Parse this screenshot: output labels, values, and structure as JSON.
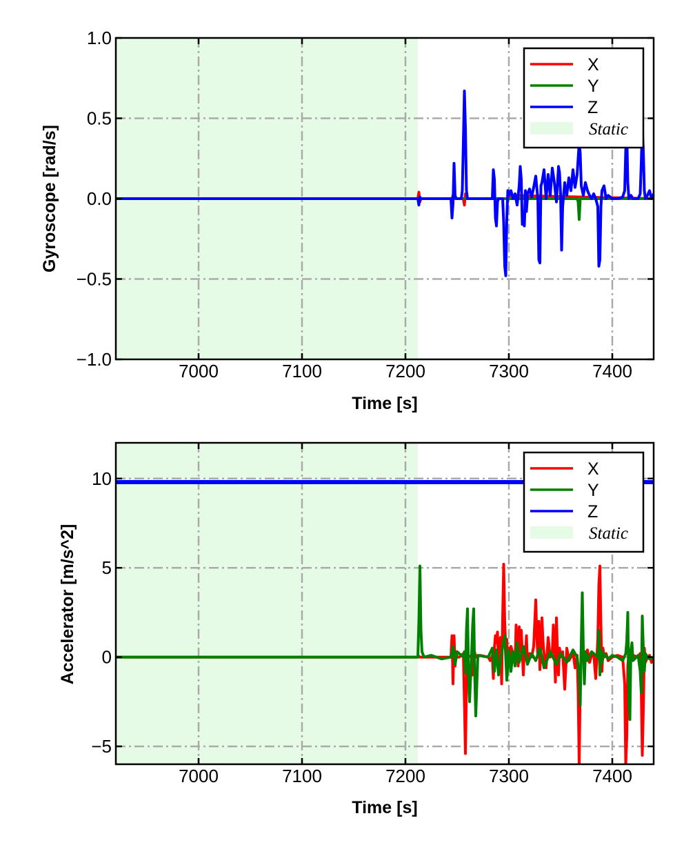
{
  "colors": {
    "x": "#ff0000",
    "y": "#008000",
    "z": "#0000ff",
    "static_fill": "#e6fbe6",
    "grid": "#aaaaaa"
  },
  "chart_data": [
    {
      "type": "line",
      "xlabel": "Time [s]",
      "ylabel": "Gyroscope [rad/s]",
      "xlim": [
        6920,
        7440
      ],
      "ylim": [
        -1.0,
        1.0
      ],
      "xticks": [
        7000,
        7100,
        7200,
        7300,
        7400
      ],
      "yticks": [
        -1.0,
        -0.5,
        0.0,
        0.5,
        1.0
      ],
      "ytick_labels": [
        "−1.0",
        "−0.5",
        "0.0",
        "0.5",
        "1.0"
      ],
      "grid": true,
      "legend_position": "top-right",
      "static_region": [
        6920,
        7212
      ],
      "legend": [
        "X",
        "Y",
        "Z",
        "Static"
      ],
      "series": [
        {
          "name": "X",
          "x": [
            6920,
            7212,
            7213,
            7214,
            7215,
            7245,
            7246,
            7247,
            7256,
            7257,
            7258,
            7259,
            7260,
            7300,
            7301,
            7440
          ],
          "y": [
            0,
            0,
            0.04,
            -0.02,
            0,
            0,
            0.02,
            0,
            0,
            -0.04,
            0.03,
            0,
            0,
            0,
            0.02,
            0
          ]
        },
        {
          "name": "Y",
          "x": [
            6920,
            7212,
            7310,
            7315,
            7316,
            7317,
            7318,
            7366,
            7367,
            7368,
            7369,
            7370,
            7440
          ],
          "y": [
            0,
            0,
            0,
            0,
            0.04,
            -0.06,
            0,
            0,
            -0.02,
            -0.13,
            0,
            0,
            0
          ]
        },
        {
          "name": "Z",
          "x": [
            6920,
            7212,
            7213,
            7214,
            7215,
            7244,
            7245,
            7246,
            7247,
            7248,
            7249,
            7254,
            7255,
            7256,
            7257,
            7258,
            7259,
            7260,
            7284,
            7285,
            7286,
            7287,
            7288,
            7289,
            7290,
            7294,
            7295,
            7296,
            7297,
            7298,
            7299,
            7300,
            7302,
            7304,
            7306,
            7308,
            7310,
            7311,
            7312,
            7313,
            7314,
            7315,
            7316,
            7317,
            7318,
            7320,
            7322,
            7324,
            7326,
            7328,
            7329,
            7330,
            7331,
            7332,
            7334,
            7336,
            7338,
            7340,
            7342,
            7344,
            7346,
            7348,
            7349,
            7350,
            7351,
            7352,
            7354,
            7356,
            7358,
            7360,
            7362,
            7364,
            7366,
            7368,
            7369,
            7370,
            7372,
            7374,
            7376,
            7378,
            7380,
            7382,
            7384,
            7386,
            7387,
            7388,
            7389,
            7390,
            7392,
            7394,
            7396,
            7400,
            7405,
            7410,
            7412,
            7413,
            7414,
            7415,
            7416,
            7418,
            7420,
            7425,
            7427,
            7428,
            7429,
            7430,
            7431,
            7432,
            7434,
            7436,
            7438,
            7440
          ],
          "y": [
            0,
            0,
            -0.04,
            0.01,
            0,
            0,
            -0.12,
            -0.03,
            0.22,
            0.02,
            0,
            0,
            0.05,
            0.35,
            0.67,
            0.44,
            0.05,
            0,
            0,
            0.18,
            0.12,
            -0.12,
            -0.17,
            -0.02,
            0,
            0,
            -0.15,
            -0.42,
            -0.48,
            -0.12,
            0.05,
            0.02,
            0.05,
            0.0,
            0.03,
            -0.04,
            0.08,
            0.2,
            0.12,
            -0.16,
            -0.09,
            -0.17,
            0.05,
            -0.08,
            0.03,
            0.06,
            0.01,
            0.07,
            0.14,
            0.0,
            -0.38,
            -0.4,
            0.08,
            0.1,
            0.18,
            0.0,
            0.15,
            0.02,
            0.19,
            0.1,
            -0.02,
            0.2,
            0.16,
            0.03,
            -0.32,
            -0.05,
            0.1,
            0.02,
            0.13,
            0.05,
            0.18,
            0.07,
            0.15,
            0.35,
            0.28,
            0.08,
            0.02,
            0.1,
            0.05,
            0.02,
            0.0,
            0.03,
            0.0,
            -0.05,
            -0.42,
            -0.38,
            -0.05,
            0.05,
            0.08,
            0.0,
            0.02,
            0.0,
            0.0,
            0.01,
            0.05,
            0.3,
            0.42,
            0.1,
            0.0,
            0.02,
            0.0,
            0.0,
            0.03,
            0.22,
            0.45,
            0.3,
            0.05,
            0.0,
            0.02,
            0.05,
            0.0,
            0.03
          ]
        }
      ]
    },
    {
      "type": "line",
      "xlabel": "Time [s]",
      "ylabel": "Accelerator [m/s^2]",
      "xlim": [
        6920,
        7440
      ],
      "ylim": [
        -6,
        12
      ],
      "xticks": [
        7000,
        7100,
        7200,
        7300,
        7400
      ],
      "yticks": [
        -5,
        0,
        5,
        10
      ],
      "ytick_labels": [
        "−5",
        "0",
        "5",
        "10"
      ],
      "grid": true,
      "legend_position": "top-right",
      "static_region": [
        6920,
        7212
      ],
      "legend": [
        "X",
        "Y",
        "Z",
        "Static"
      ],
      "series": [
        {
          "name": "X",
          "x": [
            6920,
            7212,
            7213,
            7214,
            7244,
            7245,
            7246,
            7247,
            7248,
            7249,
            7250,
            7252,
            7256,
            7257,
            7258,
            7259,
            7260,
            7264,
            7265,
            7266,
            7268,
            7272,
            7280,
            7282,
            7284,
            7285,
            7286,
            7287,
            7288,
            7289,
            7290,
            7291,
            7292,
            7293,
            7294,
            7295,
            7296,
            7297,
            7298,
            7299,
            7300,
            7301,
            7302,
            7304,
            7306,
            7307,
            7308,
            7309,
            7310,
            7311,
            7312,
            7313,
            7314,
            7315,
            7316,
            7317,
            7318,
            7320,
            7322,
            7324,
            7326,
            7327,
            7328,
            7329,
            7330,
            7331,
            7332,
            7333,
            7334,
            7336,
            7338,
            7340,
            7342,
            7343,
            7344,
            7345,
            7346,
            7347,
            7348,
            7349,
            7350,
            7352,
            7354,
            7356,
            7357,
            7358,
            7360,
            7362,
            7364,
            7366,
            7367,
            7368,
            7369,
            7370,
            7372,
            7374,
            7376,
            7378,
            7380,
            7382,
            7384,
            7386,
            7387,
            7388,
            7389,
            7390,
            7391,
            7392,
            7394,
            7396,
            7400,
            7405,
            7410,
            7412,
            7413,
            7414,
            7415,
            7416,
            7418,
            7420,
            7425,
            7427,
            7428,
            7429,
            7430,
            7431,
            7432,
            7434,
            7436,
            7438,
            7440
          ],
          "y": [
            0,
            0,
            0.05,
            0,
            0,
            1.2,
            -1.5,
            1.2,
            -0.5,
            0.3,
            0,
            0,
            0.2,
            -2.5,
            -5.4,
            -1.5,
            0.1,
            0,
            -1.0,
            0.5,
            0,
            0.1,
            0,
            -0.2,
            0.1,
            -1.2,
            0.5,
            1.2,
            0.8,
            1.4,
            -0.5,
            0.8,
            1.1,
            -1.5,
            2.2,
            5.2,
            2.0,
            0.5,
            1.0,
            -0.3,
            0.5,
            -0.2,
            0.6,
            0.2,
            -0.4,
            1.8,
            0.8,
            -0.5,
            1.7,
            0.3,
            1.5,
            0.2,
            -1.0,
            0.5,
            0.0,
            1.2,
            -0.4,
            0.2,
            0.0,
            0.6,
            3.2,
            1.2,
            0.0,
            2.0,
            -0.7,
            0.5,
            2.2,
            0.9,
            0.2,
            -0.6,
            1.1,
            0.0,
            0.3,
            1.8,
            0.5,
            -1.4,
            2.2,
            0.3,
            -1.0,
            0.5,
            0.0,
            0.3,
            -1.8,
            0.5,
            0.2,
            -0.2,
            0.0,
            0.3,
            -0.6,
            0.1,
            -2.0,
            -6.1,
            -1.5,
            0.5,
            0.2,
            0.0,
            0.4,
            -0.3,
            0.1,
            0.2,
            -1.2,
            1.0,
            4.0,
            5.1,
            1.8,
            -0.8,
            0.5,
            0.0,
            0.2,
            -0.2,
            0.0,
            0.1,
            0.0,
            -1.5,
            -6.0,
            -4.5,
            -0.5,
            0.2,
            0.0,
            0.1,
            0.0,
            0.2,
            -1.8,
            -5.5,
            -3.0,
            0.5,
            -0.3,
            0.0,
            0.1,
            -0.3,
            0.0
          ]
        },
        {
          "name": "Y",
          "x": [
            6920,
            7212,
            7213,
            7214,
            7215,
            7216,
            7218,
            7225,
            7235,
            7244,
            7246,
            7248,
            7250,
            7256,
            7257,
            7258,
            7259,
            7260,
            7261,
            7262,
            7264,
            7265,
            7266,
            7267,
            7268,
            7270,
            7280,
            7284,
            7286,
            7288,
            7290,
            7294,
            7296,
            7298,
            7300,
            7302,
            7304,
            7306,
            7308,
            7310,
            7314,
            7318,
            7322,
            7326,
            7330,
            7334,
            7340,
            7346,
            7350,
            7356,
            7362,
            7366,
            7368,
            7369,
            7370,
            7371,
            7372,
            7373,
            7374,
            7376,
            7380,
            7386,
            7387,
            7388,
            7389,
            7390,
            7392,
            7396,
            7400,
            7405,
            7410,
            7413,
            7414,
            7415,
            7416,
            7417,
            7418,
            7419,
            7420,
            7425,
            7427,
            7428,
            7429,
            7430,
            7431,
            7432,
            7434,
            7436,
            7440
          ],
          "y": [
            0,
            0,
            2.0,
            5.1,
            1.5,
            0.3,
            0,
            0.1,
            -0.1,
            0,
            0.6,
            -0.4,
            0.3,
            0,
            0.3,
            -0.9,
            1.5,
            2.7,
            -1.0,
            -2.5,
            0.2,
            1.8,
            2.7,
            -1.0,
            -3.3,
            0.1,
            0,
            0.5,
            -0.8,
            0.4,
            -1.0,
            0.6,
            1.2,
            -1.3,
            0.4,
            -0.8,
            0.3,
            -0.5,
            0.8,
            -0.3,
            0.6,
            -0.4,
            0.2,
            -0.2,
            0.5,
            -0.6,
            0.3,
            -0.4,
            0.2,
            -0.3,
            0.4,
            0.0,
            -1.0,
            -2.7,
            0.8,
            3.6,
            0.5,
            -1.5,
            0.3,
            -0.2,
            0.3,
            0.0,
            1.5,
            -1.0,
            0.4,
            -0.3,
            0.2,
            -0.1,
            0.1,
            0.0,
            -0.2,
            0.2,
            0.9,
            2.5,
            -2.5,
            -3.5,
            0.4,
            0.8,
            -0.2,
            0.1,
            -0.8,
            -2.0,
            2.3,
            0.5,
            -0.8,
            0.2,
            0.0,
            -0.1,
            0.0
          ]
        },
        {
          "name": "Z",
          "x": [
            6920,
            7440
          ],
          "y": [
            9.8,
            9.8
          ]
        }
      ]
    }
  ]
}
